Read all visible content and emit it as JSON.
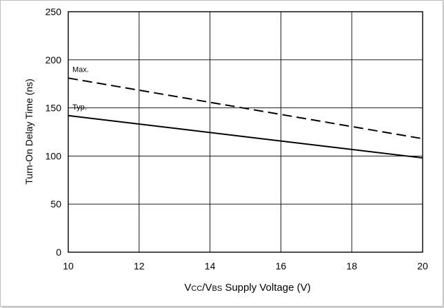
{
  "chart_data": {
    "type": "line",
    "title": "",
    "xlabel": "VCC/VBS Supply Voltage (V)",
    "xlabel_parts": {
      "p1": "V",
      "p2": "CC",
      "p3": "/V",
      "p4": "BS",
      "p5": " Supply Voltage (V)"
    },
    "ylabel": "Turn-On Delay Time (ns)",
    "xlim": [
      10,
      20
    ],
    "ylim": [
      0,
      250
    ],
    "x_ticks": [
      "10",
      "12",
      "14",
      "16",
      "18",
      "20"
    ],
    "y_ticks": [
      "0",
      "50",
      "100",
      "150",
      "200",
      "250"
    ],
    "grid": true,
    "series": [
      {
        "name": "Max.",
        "style": "dashed",
        "x": [
          10,
          20
        ],
        "values": [
          181,
          118
        ]
      },
      {
        "name": "Typ.",
        "style": "solid",
        "x": [
          10,
          20
        ],
        "values": [
          142,
          98
        ]
      }
    ]
  },
  "colors": {
    "line": "#000000",
    "grid": "#000000",
    "background": "#ffffff"
  }
}
